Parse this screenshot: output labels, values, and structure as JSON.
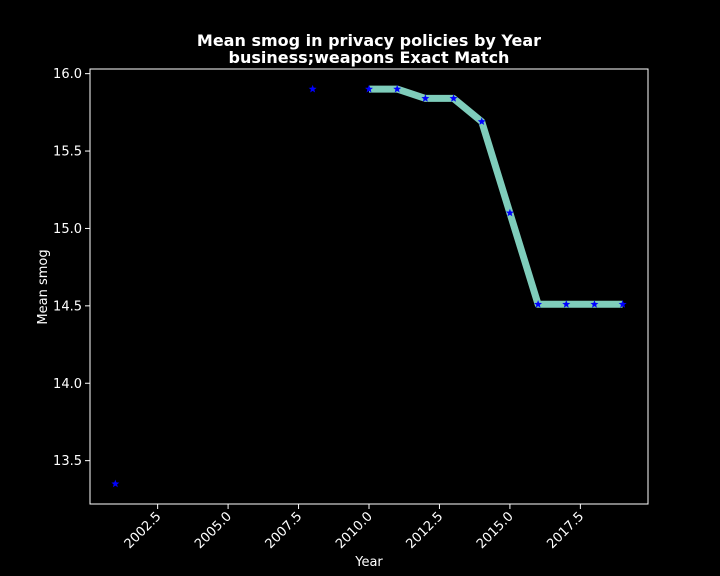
{
  "chart_data": {
    "type": "line",
    "title": "Mean smog in privacy policies by Year",
    "subtitle": "business;weapons Exact Match",
    "xlabel": "Year",
    "ylabel": "Mean smog",
    "xlim": [
      2000.1,
      2019.9
    ],
    "ylim": [
      13.22,
      16.03
    ],
    "xticks": [
      "2002.5",
      "2005.0",
      "2007.5",
      "2010.0",
      "2012.5",
      "2015.0",
      "2017.5"
    ],
    "yticks": [
      "13.5",
      "14.0",
      "14.5",
      "15.0",
      "15.5",
      "16.0"
    ],
    "grid": false,
    "series": [
      {
        "x": [
          2010,
          2011,
          2012,
          2013,
          2014,
          2015,
          2016,
          2017,
          2018,
          2019
        ],
        "y": [
          15.9,
          15.9,
          15.84,
          15.84,
          15.69,
          15.1,
          14.51,
          14.51,
          14.51,
          14.51
        ]
      }
    ],
    "points": {
      "x": [
        2001,
        2008,
        2010,
        2011,
        2012,
        2013,
        2014,
        2015,
        2016,
        2017,
        2018,
        2019
      ],
      "y": [
        13.35,
        15.9,
        15.9,
        15.9,
        15.84,
        15.84,
        15.69,
        15.1,
        14.51,
        14.51,
        14.51,
        14.51
      ]
    },
    "colors": {
      "line": "#7fcdbb",
      "marker": "#0000ff",
      "axes": "#ffffff",
      "background": "#000000"
    }
  }
}
